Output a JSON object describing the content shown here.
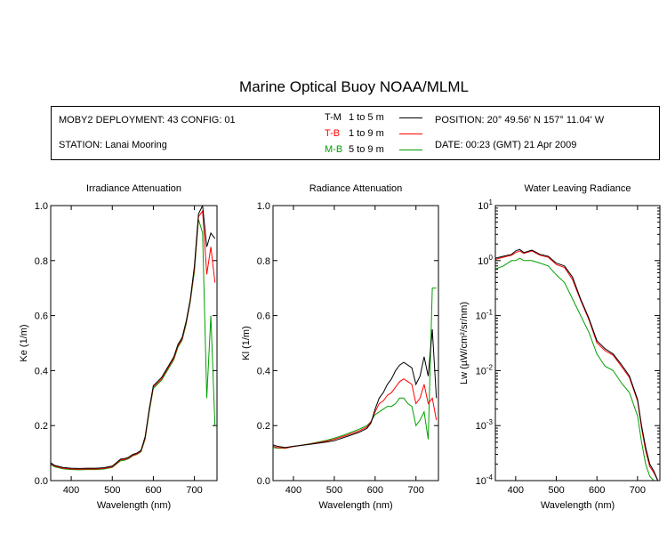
{
  "header": {
    "title": "Marine Optical Buoy NOAA/MLML",
    "deployment": "MOBY2 DEPLOYMENT: 43 CONFIG: 01",
    "station": "STATION: Lanai Mooring",
    "position": "POSITION: 20° 49.56' N   157° 11.04' W",
    "date": "DATE: 00:23 (GMT) 21 Apr 2009"
  },
  "legend": [
    {
      "code": "T-M",
      "range": "1 to 5  m",
      "color": "#000000"
    },
    {
      "code": "T-B",
      "range": "1 to 9  m",
      "color": "#ff0000"
    },
    {
      "code": "M-B",
      "range": "5 to 9  m",
      "color": "#00a000"
    }
  ],
  "chart_data": [
    {
      "type": "line",
      "title": "Irradiance Attenuation",
      "xlabel": "Wavelength (nm)",
      "ylabel": "Ke  (1/m)",
      "xlim": [
        350,
        755
      ],
      "ylim": [
        0,
        1
      ],
      "xticks": [
        "400",
        "500",
        "600",
        "700"
      ],
      "yticks": [
        "0.0",
        "0.2",
        "0.4",
        "0.6",
        "0.8",
        "1.0"
      ],
      "series": [
        {
          "name": "T-M",
          "color": "#000000",
          "x": [
            350,
            360,
            380,
            400,
            420,
            440,
            460,
            480,
            500,
            510,
            520,
            530,
            540,
            550,
            560,
            570,
            580,
            590,
            600,
            610,
            620,
            630,
            640,
            650,
            660,
            670,
            680,
            690,
            700,
            710,
            720,
            730,
            740,
            750
          ],
          "y": [
            0.065,
            0.055,
            0.048,
            0.045,
            0.044,
            0.045,
            0.045,
            0.047,
            0.053,
            0.065,
            0.078,
            0.08,
            0.085,
            0.095,
            0.1,
            0.11,
            0.16,
            0.26,
            0.345,
            0.36,
            0.375,
            0.4,
            0.425,
            0.45,
            0.495,
            0.52,
            0.58,
            0.66,
            0.78,
            0.97,
            1.0,
            0.85,
            0.9,
            0.88
          ]
        },
        {
          "name": "T-B",
          "color": "#ff0000",
          "x": [
            350,
            360,
            380,
            400,
            420,
            440,
            460,
            480,
            500,
            510,
            520,
            530,
            540,
            550,
            560,
            570,
            580,
            590,
            600,
            610,
            620,
            630,
            640,
            650,
            660,
            670,
            680,
            690,
            700,
            710,
            720,
            730,
            740,
            750
          ],
          "y": [
            0.062,
            0.052,
            0.045,
            0.042,
            0.041,
            0.042,
            0.042,
            0.044,
            0.05,
            0.062,
            0.075,
            0.077,
            0.082,
            0.092,
            0.097,
            0.107,
            0.155,
            0.255,
            0.34,
            0.355,
            0.37,
            0.395,
            0.42,
            0.445,
            0.49,
            0.515,
            0.575,
            0.655,
            0.77,
            0.96,
            0.98,
            0.75,
            0.85,
            0.72
          ]
        },
        {
          "name": "M-B",
          "color": "#00a000",
          "x": [
            350,
            360,
            380,
            400,
            420,
            440,
            460,
            480,
            500,
            510,
            520,
            530,
            540,
            550,
            560,
            570,
            580,
            590,
            600,
            610,
            620,
            630,
            640,
            650,
            660,
            670,
            680,
            690,
            700,
            710,
            720,
            730,
            740,
            750
          ],
          "y": [
            0.058,
            0.05,
            0.043,
            0.04,
            0.039,
            0.04,
            0.04,
            0.042,
            0.048,
            0.06,
            0.072,
            0.074,
            0.08,
            0.09,
            0.095,
            0.105,
            0.15,
            0.25,
            0.335,
            0.35,
            0.365,
            0.39,
            0.415,
            0.44,
            0.485,
            0.51,
            0.57,
            0.65,
            0.76,
            0.95,
            0.9,
            0.3,
            0.6,
            0.2
          ]
        }
      ]
    },
    {
      "type": "line",
      "title": "Radiance Attenuation",
      "xlabel": "Wavelength (nm)",
      "ylabel": "Kl  (1/m)",
      "xlim": [
        350,
        755
      ],
      "ylim": [
        0,
        1
      ],
      "xticks": [
        "400",
        "500",
        "600",
        "700"
      ],
      "yticks": [
        "0.0",
        "0.2",
        "0.4",
        "0.6",
        "0.8",
        "1.0"
      ],
      "series": [
        {
          "name": "T-M",
          "color": "#000000",
          "x": [
            350,
            360,
            380,
            400,
            420,
            440,
            460,
            480,
            500,
            520,
            540,
            560,
            580,
            590,
            600,
            610,
            620,
            630,
            640,
            650,
            660,
            670,
            680,
            690,
            700,
            710,
            720,
            730,
            740,
            750
          ],
          "y": [
            0.13,
            0.125,
            0.12,
            0.125,
            0.128,
            0.132,
            0.136,
            0.14,
            0.145,
            0.155,
            0.165,
            0.175,
            0.19,
            0.21,
            0.26,
            0.3,
            0.32,
            0.35,
            0.37,
            0.4,
            0.42,
            0.43,
            0.42,
            0.41,
            0.35,
            0.38,
            0.45,
            0.38,
            0.55,
            0.3
          ]
        },
        {
          "name": "T-B",
          "color": "#ff0000",
          "x": [
            350,
            360,
            380,
            400,
            420,
            440,
            460,
            480,
            500,
            520,
            540,
            560,
            580,
            590,
            600,
            610,
            620,
            630,
            640,
            650,
            660,
            670,
            680,
            690,
            700,
            710,
            720,
            730,
            740,
            750
          ],
          "y": [
            0.125,
            0.12,
            0.118,
            0.124,
            0.128,
            0.133,
            0.138,
            0.143,
            0.15,
            0.16,
            0.17,
            0.18,
            0.195,
            0.215,
            0.25,
            0.28,
            0.29,
            0.31,
            0.32,
            0.34,
            0.36,
            0.37,
            0.36,
            0.35,
            0.28,
            0.3,
            0.35,
            0.28,
            0.3,
            0.22
          ]
        },
        {
          "name": "M-B",
          "color": "#00a000",
          "x": [
            350,
            360,
            380,
            400,
            420,
            440,
            460,
            480,
            500,
            520,
            540,
            560,
            580,
            590,
            600,
            610,
            620,
            630,
            640,
            650,
            660,
            670,
            680,
            690,
            700,
            710,
            720,
            730,
            740,
            750
          ],
          "y": [
            0.12,
            0.118,
            0.117,
            0.124,
            0.129,
            0.134,
            0.14,
            0.146,
            0.154,
            0.164,
            0.175,
            0.186,
            0.2,
            0.215,
            0.24,
            0.25,
            0.26,
            0.27,
            0.27,
            0.28,
            0.3,
            0.3,
            0.28,
            0.27,
            0.2,
            0.22,
            0.25,
            0.15,
            0.7,
            0.7
          ]
        }
      ]
    },
    {
      "type": "line",
      "title": "Water Leaving Radiance",
      "xlabel": "Wavelength (nm)",
      "ylabel": "Lw  (µW/cm²/sr/nm)",
      "xlim": [
        350,
        755
      ],
      "ylim": [
        0.0001,
        10
      ],
      "yscale": "log",
      "xticks": [
        "400",
        "500",
        "600",
        "700"
      ],
      "yticks": [
        {
          "base": "10",
          "exp": "1"
        },
        {
          "base": "10",
          "exp": "0"
        },
        {
          "base": "10",
          "exp": "-1"
        },
        {
          "base": "10",
          "exp": "-2"
        },
        {
          "base": "10",
          "exp": "-3"
        },
        {
          "base": "10",
          "exp": "-4"
        }
      ],
      "series": [
        {
          "name": "T-M",
          "color": "#000000",
          "x": [
            350,
            370,
            390,
            400,
            410,
            420,
            440,
            460,
            480,
            500,
            520,
            540,
            560,
            580,
            600,
            620,
            640,
            660,
            680,
            700,
            710,
            720,
            730,
            740,
            750
          ],
          "y": [
            1.1,
            1.2,
            1.3,
            1.5,
            1.6,
            1.4,
            1.55,
            1.3,
            1.2,
            0.9,
            0.8,
            0.5,
            0.2,
            0.09,
            0.035,
            0.025,
            0.02,
            0.013,
            0.008,
            0.003,
            0.001,
            0.0004,
            0.0002,
            0.00015,
            0.0001
          ]
        },
        {
          "name": "T-B",
          "color": "#ff0000",
          "x": [
            350,
            370,
            390,
            400,
            410,
            420,
            440,
            460,
            480,
            500,
            520,
            540,
            560,
            580,
            600,
            620,
            640,
            660,
            680,
            700,
            710,
            720,
            730,
            740,
            750
          ],
          "y": [
            1.05,
            1.15,
            1.25,
            1.4,
            1.5,
            1.35,
            1.5,
            1.25,
            1.15,
            0.85,
            0.75,
            0.45,
            0.19,
            0.085,
            0.032,
            0.023,
            0.019,
            0.012,
            0.0075,
            0.0028,
            0.0009,
            0.00035,
            0.00018,
            0.00014,
            0.0001
          ]
        },
        {
          "name": "M-B",
          "color": "#00a000",
          "x": [
            350,
            370,
            390,
            400,
            410,
            420,
            440,
            460,
            480,
            500,
            520,
            540,
            560,
            580,
            600,
            620,
            640,
            660,
            680,
            700,
            710,
            720,
            730,
            740,
            750
          ],
          "y": [
            0.7,
            0.8,
            1.0,
            1.0,
            1.1,
            1.0,
            1.0,
            0.9,
            0.8,
            0.55,
            0.4,
            0.2,
            0.1,
            0.05,
            0.02,
            0.012,
            0.01,
            0.006,
            0.004,
            0.0015,
            0.0005,
            0.0002,
            0.00012,
            0.0001,
            0.0001
          ]
        }
      ]
    }
  ]
}
